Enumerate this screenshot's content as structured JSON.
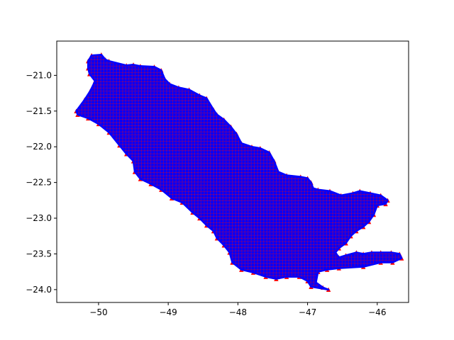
{
  "chart_data": {
    "type": "map",
    "title": "",
    "xlabel": "",
    "ylabel": "",
    "xlim": [
      -50.6,
      -45.55
    ],
    "ylim": [
      -24.18,
      -20.52
    ],
    "grid": false,
    "legend": null,
    "x_ticks": [
      {
        "value": -50,
        "label": "−50"
      },
      {
        "value": -49,
        "label": "−49"
      },
      {
        "value": -48,
        "label": "−48"
      },
      {
        "value": -47,
        "label": "−47"
      },
      {
        "value": -46,
        "label": "−46"
      }
    ],
    "y_ticks": [
      {
        "value": -21.0,
        "label": "−21.0"
      },
      {
        "value": -21.5,
        "label": "−21.5"
      },
      {
        "value": -22.0,
        "label": "−22.0"
      },
      {
        "value": -22.5,
        "label": "−22.5"
      },
      {
        "value": -23.0,
        "label": "−23.0"
      },
      {
        "value": -23.5,
        "label": "−23.5"
      },
      {
        "value": -24.0,
        "label": "−24.0"
      }
    ],
    "region": {
      "fill_color": "#0000ff",
      "grid_color": "#ff0000",
      "marker_color": "#ff0000",
      "grid_spacing_deg": 0.045,
      "boundary": [
        [
          -50.32,
          -21.5
        ],
        [
          -50.2,
          -21.34
        ],
        [
          -50.12,
          -21.22
        ],
        [
          -50.05,
          -21.08
        ],
        [
          -50.13,
          -20.98
        ],
        [
          -50.15,
          -20.9
        ],
        [
          -50.15,
          -20.8
        ],
        [
          -50.1,
          -20.72
        ],
        [
          -49.96,
          -20.71
        ],
        [
          -49.9,
          -20.78
        ],
        [
          -49.85,
          -20.8
        ],
        [
          -49.6,
          -20.86
        ],
        [
          -49.5,
          -20.85
        ],
        [
          -49.4,
          -20.87
        ],
        [
          -49.2,
          -20.88
        ],
        [
          -49.1,
          -20.93
        ],
        [
          -49.05,
          -21.05
        ],
        [
          -48.98,
          -21.12
        ],
        [
          -48.85,
          -21.17
        ],
        [
          -48.7,
          -21.2
        ],
        [
          -48.55,
          -21.28
        ],
        [
          -48.45,
          -21.32
        ],
        [
          -48.35,
          -21.48
        ],
        [
          -48.3,
          -21.55
        ],
        [
          -48.2,
          -21.62
        ],
        [
          -48.1,
          -21.72
        ],
        [
          -48.02,
          -21.82
        ],
        [
          -47.95,
          -21.95
        ],
        [
          -47.8,
          -22.0
        ],
        [
          -47.68,
          -22.02
        ],
        [
          -47.55,
          -22.08
        ],
        [
          -47.48,
          -22.2
        ],
        [
          -47.42,
          -22.35
        ],
        [
          -47.3,
          -22.4
        ],
        [
          -47.1,
          -22.42
        ],
        [
          -47.0,
          -22.44
        ],
        [
          -46.95,
          -22.5
        ],
        [
          -46.92,
          -22.58
        ],
        [
          -46.85,
          -22.6
        ],
        [
          -46.68,
          -22.62
        ],
        [
          -46.52,
          -22.68
        ],
        [
          -46.35,
          -22.65
        ],
        [
          -46.25,
          -22.62
        ],
        [
          -46.1,
          -22.65
        ],
        [
          -45.95,
          -22.68
        ],
        [
          -45.85,
          -22.75
        ],
        [
          -45.88,
          -22.8
        ],
        [
          -46.0,
          -22.82
        ],
        [
          -46.05,
          -22.95
        ],
        [
          -46.12,
          -23.05
        ],
        [
          -46.2,
          -23.12
        ],
        [
          -46.3,
          -23.18
        ],
        [
          -46.38,
          -23.25
        ],
        [
          -46.45,
          -23.35
        ],
        [
          -46.55,
          -23.42
        ],
        [
          -46.6,
          -23.48
        ],
        [
          -46.55,
          -23.55
        ],
        [
          -46.45,
          -23.52
        ],
        [
          -46.3,
          -23.48
        ],
        [
          -46.2,
          -23.5
        ],
        [
          -46.08,
          -23.48
        ],
        [
          -45.95,
          -23.48
        ],
        [
          -45.8,
          -23.48
        ],
        [
          -45.68,
          -23.5
        ],
        [
          -45.65,
          -23.56
        ],
        [
          -45.78,
          -23.62
        ],
        [
          -45.95,
          -23.62
        ],
        [
          -46.2,
          -23.68
        ],
        [
          -46.55,
          -23.7
        ],
        [
          -46.72,
          -23.72
        ],
        [
          -46.85,
          -23.75
        ],
        [
          -46.88,
          -23.9
        ],
        [
          -46.78,
          -23.97
        ],
        [
          -46.7,
          -24.0
        ],
        [
          -46.95,
          -23.96
        ],
        [
          -47.0,
          -23.88
        ],
        [
          -47.12,
          -23.82
        ],
        [
          -47.3,
          -23.82
        ],
        [
          -47.45,
          -23.85
        ],
        [
          -47.6,
          -23.82
        ],
        [
          -47.78,
          -23.76
        ],
        [
          -47.95,
          -23.72
        ],
        [
          -48.08,
          -23.62
        ],
        [
          -48.12,
          -23.48
        ],
        [
          -48.2,
          -23.38
        ],
        [
          -48.3,
          -23.28
        ],
        [
          -48.35,
          -23.18
        ],
        [
          -48.45,
          -23.1
        ],
        [
          -48.55,
          -23.0
        ],
        [
          -48.65,
          -22.92
        ],
        [
          -48.8,
          -22.78
        ],
        [
          -48.95,
          -22.72
        ],
        [
          -49.1,
          -22.6
        ],
        [
          -49.25,
          -22.52
        ],
        [
          -49.4,
          -22.45
        ],
        [
          -49.48,
          -22.35
        ],
        [
          -49.5,
          -22.2
        ],
        [
          -49.6,
          -22.1
        ],
        [
          -49.7,
          -21.98
        ],
        [
          -49.85,
          -21.8
        ],
        [
          -50.0,
          -21.68
        ],
        [
          -50.15,
          -21.6
        ],
        [
          -50.3,
          -21.55
        ]
      ]
    }
  }
}
